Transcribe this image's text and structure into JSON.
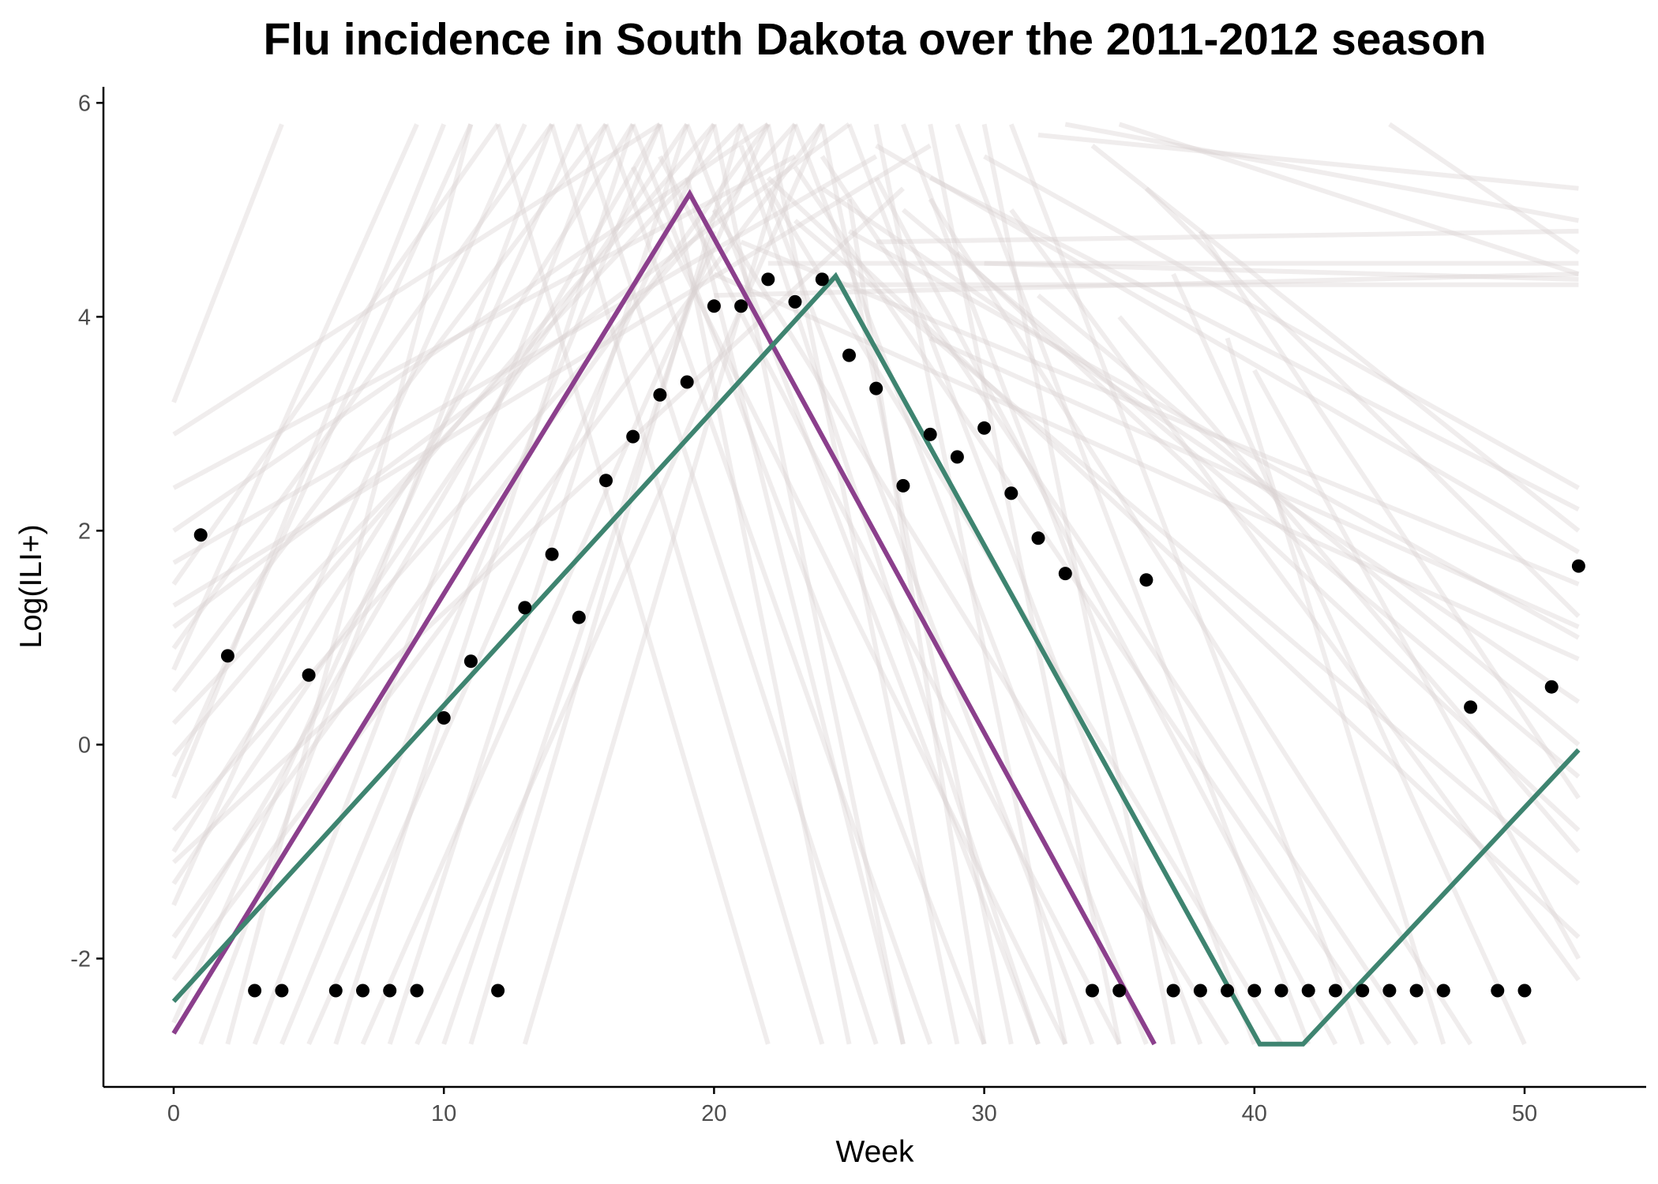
{
  "colors": {
    "purple": "#8b3f8c",
    "green": "#3e8470",
    "ensemble": "#d9d1d1",
    "points": "#000000",
    "axis": "#000000",
    "tick_text": "#4d4d4d"
  },
  "chart_data": {
    "type": "line",
    "title": "Flu incidence in South Dakota over the 2011-2012 season",
    "xlabel": "Week",
    "ylabel": "Log(ILI+)",
    "xlim": [
      -2.6,
      54.5
    ],
    "ylim": [
      -3.2,
      6.15
    ],
    "grid": false,
    "legend": "none",
    "x_ticks": [
      0,
      10,
      20,
      30,
      40,
      50
    ],
    "y_ticks": [
      -2,
      0,
      2,
      4,
      6
    ],
    "x_tick_labels": [
      "0",
      "10",
      "20",
      "30",
      "40",
      "50"
    ],
    "y_tick_labels": [
      "-2",
      "0",
      "2",
      "4",
      "6"
    ],
    "observed_points": [
      [
        1,
        1.96
      ],
      [
        2,
        0.83
      ],
      [
        3,
        -2.3
      ],
      [
        4,
        -2.3
      ],
      [
        5,
        0.65
      ],
      [
        6,
        -2.3
      ],
      [
        7,
        -2.3
      ],
      [
        8,
        -2.3
      ],
      [
        9,
        -2.3
      ],
      [
        10,
        0.25
      ],
      [
        11,
        0.78
      ],
      [
        12,
        -2.3
      ],
      [
        13,
        1.28
      ],
      [
        14,
        1.78
      ],
      [
        15,
        1.19
      ],
      [
        16,
        2.47
      ],
      [
        17,
        2.88
      ],
      [
        18,
        3.27
      ],
      [
        19,
        3.39
      ],
      [
        20,
        4.1
      ],
      [
        21,
        4.1
      ],
      [
        22,
        4.35
      ],
      [
        23,
        4.14
      ],
      [
        24,
        4.35
      ],
      [
        25,
        3.64
      ],
      [
        26,
        3.33
      ],
      [
        27,
        2.42
      ],
      [
        28,
        2.9
      ],
      [
        29,
        2.69
      ],
      [
        30,
        2.96
      ],
      [
        31,
        2.35
      ],
      [
        32,
        1.93
      ],
      [
        33,
        1.6
      ],
      [
        34,
        -2.3
      ],
      [
        35,
        -2.3
      ],
      [
        36,
        1.54
      ],
      [
        37,
        -2.3
      ],
      [
        38,
        -2.3
      ],
      [
        39,
        -2.3
      ],
      [
        40,
        -2.3
      ],
      [
        41,
        -2.3
      ],
      [
        42,
        -2.3
      ],
      [
        43,
        -2.3
      ],
      [
        44,
        -2.3
      ],
      [
        45,
        -2.3
      ],
      [
        46,
        -2.3
      ],
      [
        47,
        -2.3
      ],
      [
        48,
        0.35
      ],
      [
        49,
        -2.3
      ],
      [
        50,
        -2.3
      ],
      [
        51,
        0.54
      ],
      [
        52,
        1.67
      ]
    ],
    "series": [
      {
        "x": [
          0,
          19.1,
          36.3
        ],
        "y": [
          -2.7,
          5.15,
          -2.8
        ]
      },
      {
        "x": [
          0,
          24.5,
          40.2,
          41.8,
          52
        ],
        "y": [
          -2.4,
          4.38,
          -2.8,
          -2.8,
          -0.05
        ]
      }
    ],
    "ensemble_lines": [
      [
        [
          0,
          3.2
        ],
        [
          4,
          5.8
        ]
      ],
      [
        [
          0,
          2.9
        ],
        [
          18,
          5.8
        ]
      ],
      [
        [
          0,
          2.0
        ],
        [
          22,
          5.8
        ]
      ],
      [
        [
          0,
          1.5
        ],
        [
          12,
          5.8
        ]
      ],
      [
        [
          0,
          0.9
        ],
        [
          14,
          5.8
        ]
      ],
      [
        [
          0,
          0.5
        ],
        [
          16,
          5.8
        ]
      ],
      [
        [
          0,
          -0.1
        ],
        [
          20,
          5.8
        ]
      ],
      [
        [
          0,
          -0.5
        ],
        [
          10,
          5.8
        ]
      ],
      [
        [
          0,
          -1.0
        ],
        [
          17,
          5.8
        ]
      ],
      [
        [
          0,
          -1.3
        ],
        [
          19,
          5.8
        ]
      ],
      [
        [
          0,
          -1.8
        ],
        [
          22,
          5.8
        ]
      ],
      [
        [
          0,
          -2.2
        ],
        [
          24,
          5.8
        ]
      ],
      [
        [
          0,
          1.1
        ],
        [
          25,
          5.8
        ]
      ],
      [
        [
          0,
          0.2
        ],
        [
          21,
          5.8
        ]
      ],
      [
        [
          0,
          -0.8
        ],
        [
          23,
          5.8
        ]
      ],
      [
        [
          0,
          1.7
        ],
        [
          26,
          5.5
        ]
      ],
      [
        [
          0,
          -1.5
        ],
        [
          13,
          5.8
        ]
      ],
      [
        [
          0,
          0.7
        ],
        [
          9,
          5.8
        ]
      ],
      [
        [
          0,
          -0.3
        ],
        [
          11,
          5.8
        ]
      ],
      [
        [
          0,
          -2.6
        ],
        [
          15,
          5.8
        ]
      ],
      [
        [
          0,
          2.4
        ],
        [
          23,
          5.5
        ]
      ],
      [
        [
          0,
          1.3
        ],
        [
          28,
          5.6
        ]
      ],
      [
        [
          0,
          -2.0
        ],
        [
          18,
          5.8
        ]
      ],
      [
        [
          0,
          -1.1
        ],
        [
          27,
          5.2
        ]
      ],
      [
        [
          1,
          -2.8
        ],
        [
          14,
          5.8
        ]
      ],
      [
        [
          2,
          -2.8
        ],
        [
          11,
          5.8
        ]
      ],
      [
        [
          3,
          -2.8
        ],
        [
          16,
          5.8
        ]
      ],
      [
        [
          4,
          -2.8
        ],
        [
          18,
          5.8
        ]
      ],
      [
        [
          5,
          -2.8
        ],
        [
          20,
          5.8
        ]
      ],
      [
        [
          6,
          -2.8
        ],
        [
          17,
          5.8
        ]
      ],
      [
        [
          7,
          -2.8
        ],
        [
          22,
          5.8
        ]
      ],
      [
        [
          8,
          -2.8
        ],
        [
          19,
          5.8
        ]
      ],
      [
        [
          9,
          -2.8
        ],
        [
          24,
          5.8
        ]
      ],
      [
        [
          11,
          -2.8
        ],
        [
          21,
          5.8
        ]
      ],
      [
        [
          13,
          -2.8
        ],
        [
          23,
          5.8
        ]
      ],
      [
        [
          10,
          -2.8
        ],
        [
          20,
          4.8
        ]
      ],
      [
        [
          12,
          5.8
        ],
        [
          22,
          -2.8
        ]
      ],
      [
        [
          14,
          5.8
        ],
        [
          24,
          -2.8
        ]
      ],
      [
        [
          15,
          5.8
        ],
        [
          26,
          -2.8
        ]
      ],
      [
        [
          16,
          5.8
        ],
        [
          28,
          -2.8
        ]
      ],
      [
        [
          17,
          5.8
        ],
        [
          30,
          -2.8
        ]
      ],
      [
        [
          18,
          5.8
        ],
        [
          25,
          -2.8
        ]
      ],
      [
        [
          19,
          5.8
        ],
        [
          32,
          -2.8
        ]
      ],
      [
        [
          20,
          5.8
        ],
        [
          27,
          -2.8
        ]
      ],
      [
        [
          21,
          5.8
        ],
        [
          34,
          -2.8
        ]
      ],
      [
        [
          22,
          5.8
        ],
        [
          29,
          -2.8
        ]
      ],
      [
        [
          23,
          5.8
        ],
        [
          36,
          -2.8
        ]
      ],
      [
        [
          24,
          5.8
        ],
        [
          31,
          -2.8
        ]
      ],
      [
        [
          25,
          5.8
        ],
        [
          38,
          -2.8
        ]
      ],
      [
        [
          26,
          5.8
        ],
        [
          33,
          -2.8
        ]
      ],
      [
        [
          27,
          5.8
        ],
        [
          40,
          -2.8
        ]
      ],
      [
        [
          28,
          5.8
        ],
        [
          35,
          -2.8
        ]
      ],
      [
        [
          29,
          5.8
        ],
        [
          42,
          -2.8
        ]
      ],
      [
        [
          30,
          5.8
        ],
        [
          37,
          -2.8
        ]
      ],
      [
        [
          31,
          5.8
        ],
        [
          44,
          -2.8
        ]
      ],
      [
        [
          20,
          5.0
        ],
        [
          39,
          -2.8
        ]
      ],
      [
        [
          22,
          5.2
        ],
        [
          41,
          -2.8
        ]
      ],
      [
        [
          24,
          5.5
        ],
        [
          46,
          -2.8
        ]
      ],
      [
        [
          26,
          5.3
        ],
        [
          43,
          -2.8
        ]
      ],
      [
        [
          28,
          5.1
        ],
        [
          48,
          -2.8
        ]
      ],
      [
        [
          18,
          5.5
        ],
        [
          35,
          -2.8
        ]
      ],
      [
        [
          21,
          5.6
        ],
        [
          32,
          -2.8
        ]
      ],
      [
        [
          25,
          5.1
        ],
        [
          30,
          -2.8
        ]
      ],
      [
        [
          23,
          5.4
        ],
        [
          45,
          -2.8
        ]
      ],
      [
        [
          19,
          5.3
        ],
        [
          27,
          -2.8
        ]
      ],
      [
        [
          17,
          5.4
        ],
        [
          33,
          -2.8
        ]
      ],
      [
        [
          30,
          5.5
        ],
        [
          52,
          2.4
        ]
      ],
      [
        [
          28,
          5.3
        ],
        [
          52,
          2.2
        ]
      ],
      [
        [
          26,
          5.6
        ],
        [
          52,
          1.8
        ]
      ],
      [
        [
          25,
          4.8
        ],
        [
          52,
          1.0
        ]
      ],
      [
        [
          24,
          5.2
        ],
        [
          52,
          0.4
        ]
      ],
      [
        [
          27,
          5.0
        ],
        [
          52,
          -0.3
        ]
      ],
      [
        [
          29,
          4.6
        ],
        [
          52,
          -0.8
        ]
      ],
      [
        [
          23,
          4.9
        ],
        [
          52,
          -1.3
        ]
      ],
      [
        [
          22,
          5.3
        ],
        [
          52,
          -1.8
        ]
      ],
      [
        [
          31,
          5.0
        ],
        [
          52,
          -2.2
        ]
      ],
      [
        [
          21,
          4.7
        ],
        [
          52,
          1.5
        ]
      ],
      [
        [
          20,
          4.4
        ],
        [
          52,
          0.8
        ]
      ],
      [
        [
          33,
          5.8
        ],
        [
          52,
          4.9
        ]
      ],
      [
        [
          32,
          5.7
        ],
        [
          52,
          5.2
        ]
      ],
      [
        [
          45,
          5.8
        ],
        [
          52,
          4.6
        ]
      ],
      [
        [
          35,
          5.8
        ],
        [
          52,
          4.4
        ]
      ],
      [
        [
          22,
          4.5
        ],
        [
          52,
          4.5
        ]
      ],
      [
        [
          24,
          4.3
        ],
        [
          52,
          4.3
        ]
      ],
      [
        [
          26,
          4.7
        ],
        [
          52,
          4.8
        ]
      ],
      [
        [
          30,
          4.5
        ],
        [
          52,
          4.35
        ]
      ],
      [
        [
          20,
          4.2
        ],
        [
          52,
          4.4
        ]
      ],
      [
        [
          34,
          5.6
        ],
        [
          52,
          2.0
        ]
      ],
      [
        [
          36,
          5.2
        ],
        [
          52,
          1.2
        ]
      ],
      [
        [
          38,
          4.8
        ],
        [
          52,
          -0.5
        ]
      ],
      [
        [
          35,
          4.0
        ],
        [
          52,
          -1.0
        ]
      ],
      [
        [
          40,
          3.5
        ],
        [
          52,
          -2.0
        ]
      ],
      [
        [
          37,
          4.4
        ],
        [
          50,
          -2.8
        ]
      ],
      [
        [
          39,
          3.8
        ],
        [
          47,
          -2.8
        ]
      ],
      [
        [
          32,
          4.2
        ],
        [
          52,
          0.0
        ]
      ],
      [
        [
          28,
          3.8
        ],
        [
          52,
          1.1
        ]
      ]
    ]
  }
}
